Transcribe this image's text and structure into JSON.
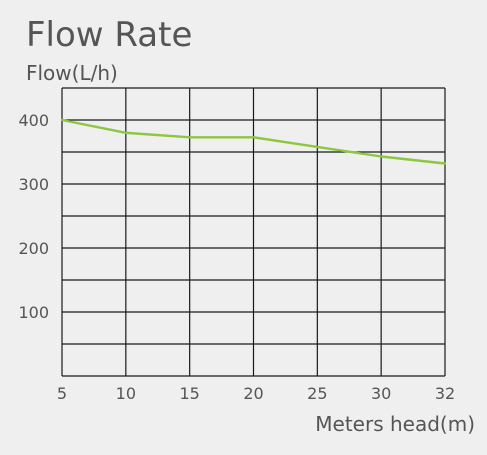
{
  "chart_data": {
    "type": "line",
    "title": "Flow Rate",
    "ylabel": "Flow(L/h)",
    "xlabel": "Meters head(m)",
    "x_ticks": [
      5,
      10,
      15,
      20,
      25,
      30,
      32
    ],
    "y_ticks": [
      100,
      200,
      300,
      400
    ],
    "xlim": [
      5,
      32
    ],
    "ylim": [
      0,
      425
    ],
    "grid": true,
    "series": [
      {
        "points": [
          {
            "x": 5,
            "y": 400
          },
          {
            "x": 10,
            "y": 380
          },
          {
            "x": 15,
            "y": 373
          },
          {
            "x": 20,
            "y": 373
          },
          {
            "x": 25,
            "y": 358
          },
          {
            "x": 30,
            "y": 343
          },
          {
            "x": 32,
            "y": 332
          }
        ]
      }
    ],
    "colors": {
      "line": "#8dc63f",
      "grid": "#1a1a1a",
      "text": "#555555",
      "background": "#efefef"
    }
  }
}
